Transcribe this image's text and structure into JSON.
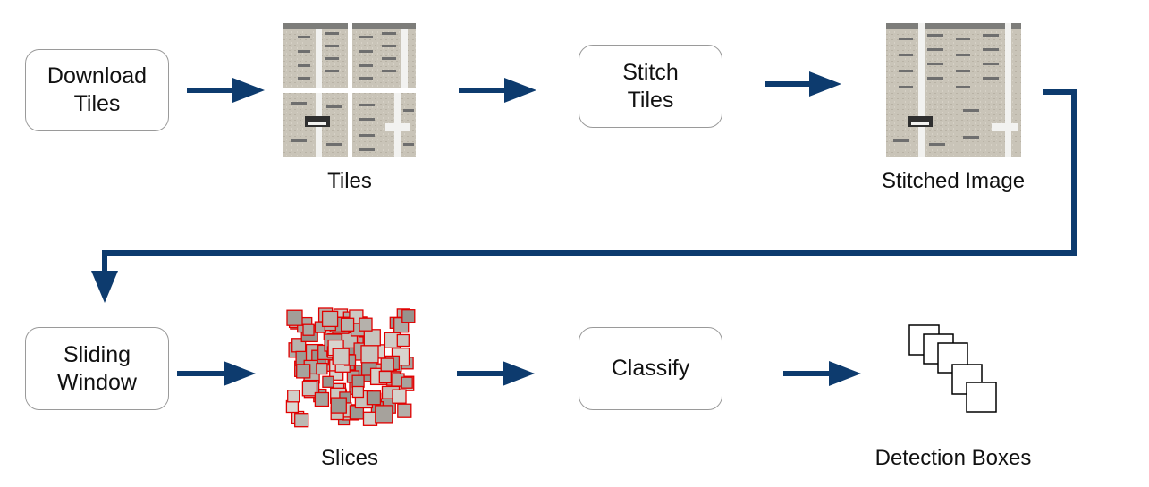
{
  "steps": {
    "download": "Download\nTiles",
    "stitch": "Stitch\nTiles",
    "sliding": "Sliding\nWindow",
    "classify": "Classify"
  },
  "captions": {
    "tiles": "Tiles",
    "stitched": "Stitched Image",
    "slices": "Slices",
    "detection": "Detection Boxes"
  },
  "colors": {
    "arrow": "#0d3b6e",
    "box_border": "#9a9a9a",
    "slice_border": "#e00000",
    "imagery_ground": "#c9c4b8"
  }
}
